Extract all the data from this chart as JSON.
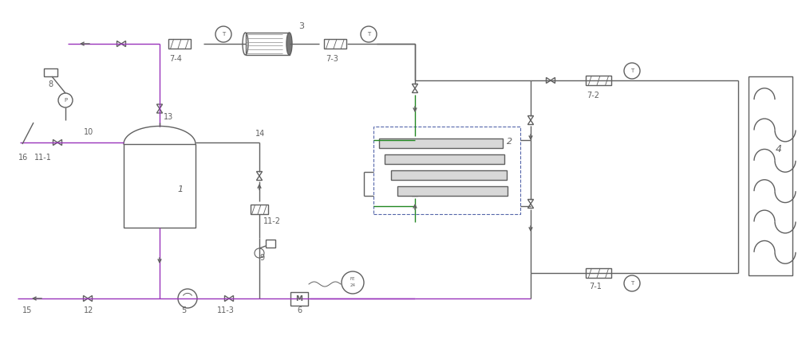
{
  "bg": "#ffffff",
  "lc": "#606060",
  "pc": "#9933bb",
  "gc": "#228822",
  "lw": 1.0,
  "fw": 10.0,
  "fh": 4.41,
  "xlim": [
    0,
    10
  ],
  "ylim": [
    0,
    4.41
  ]
}
